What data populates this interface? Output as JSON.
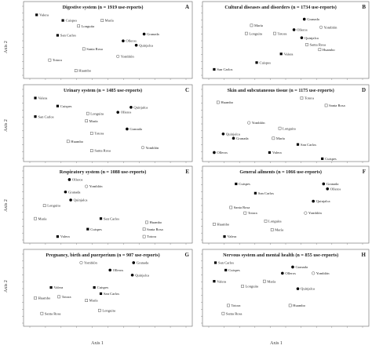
{
  "figure": {
    "x_axis_title": "Axis 1",
    "y_axis_title": "Axis 2",
    "colors": {
      "filled": "#000000",
      "open_stroke": "#555555",
      "frame": "#666666"
    }
  },
  "chart_data": [
    {
      "letter": "A",
      "title": "Digestive system (n = 1919 use-reports)",
      "type": "scatter",
      "xlim": [
        0,
        1
      ],
      "ylim": [
        0,
        1
      ],
      "points": [
        {
          "label": "Valera",
          "x": 0.04,
          "y": 0.95,
          "marker": "square"
        },
        {
          "label": "Cuispes",
          "x": 0.24,
          "y": 0.86,
          "marker": "square"
        },
        {
          "label": "María",
          "x": 0.54,
          "y": 0.86,
          "marker": "open-square"
        },
        {
          "label": "Longuita",
          "x": 0.36,
          "y": 0.77,
          "marker": "open-square"
        },
        {
          "label": "San Carlos",
          "x": 0.2,
          "y": 0.62,
          "marker": "square"
        },
        {
          "label": "Granada",
          "x": 0.86,
          "y": 0.64,
          "marker": "circle"
        },
        {
          "label": "Olleros",
          "x": 0.7,
          "y": 0.53,
          "marker": "circle"
        },
        {
          "label": "Quinjalca",
          "x": 0.8,
          "y": 0.46,
          "marker": "circle"
        },
        {
          "label": "Santa Rosa",
          "x": 0.4,
          "y": 0.4,
          "marker": "open-square"
        },
        {
          "label": "Yomblón",
          "x": 0.66,
          "y": 0.28,
          "marker": "open-circle"
        },
        {
          "label": "Totora",
          "x": 0.14,
          "y": 0.22,
          "marker": "open-square"
        },
        {
          "label": "Huambo",
          "x": 0.34,
          "y": 0.05,
          "marker": "open-square"
        }
      ]
    },
    {
      "letter": "B",
      "title": "Cultural diseases and disorders (n = 1734 use-reports)",
      "type": "scatter",
      "xlim": [
        0,
        1
      ],
      "ylim": [
        0,
        1
      ],
      "points": [
        {
          "label": "Granada",
          "x": 0.73,
          "y": 0.88,
          "marker": "circle"
        },
        {
          "label": "María",
          "x": 0.32,
          "y": 0.78,
          "marker": "open-square"
        },
        {
          "label": "Yomblón",
          "x": 0.86,
          "y": 0.75,
          "marker": "open-circle"
        },
        {
          "label": "Olleros",
          "x": 0.65,
          "y": 0.71,
          "marker": "circle"
        },
        {
          "label": "Longuita",
          "x": 0.28,
          "y": 0.65,
          "marker": "open-square"
        },
        {
          "label": "Totora",
          "x": 0.5,
          "y": 0.65,
          "marker": "open-square"
        },
        {
          "label": "Quinjalca",
          "x": 0.71,
          "y": 0.58,
          "marker": "circle"
        },
        {
          "label": "Santa Rosa",
          "x": 0.75,
          "y": 0.47,
          "marker": "open-square"
        },
        {
          "label": "Huambo",
          "x": 0.85,
          "y": 0.39,
          "marker": "open-square"
        },
        {
          "label": "Valera",
          "x": 0.55,
          "y": 0.32,
          "marker": "square"
        },
        {
          "label": "Cuispes",
          "x": 0.36,
          "y": 0.18,
          "marker": "square"
        },
        {
          "label": "San Carlos",
          "x": 0.03,
          "y": 0.07,
          "marker": "square"
        }
      ]
    },
    {
      "letter": "C",
      "title": "Urinary system (n = 1485 use-reports)",
      "type": "scatter",
      "xlim": [
        0,
        1
      ],
      "ylim": [
        0,
        1
      ],
      "points": [
        {
          "label": "Valera",
          "x": 0.03,
          "y": 0.95,
          "marker": "square"
        },
        {
          "label": "Cuispes",
          "x": 0.2,
          "y": 0.82,
          "marker": "square"
        },
        {
          "label": "Quinjalca",
          "x": 0.76,
          "y": 0.8,
          "marker": "circle"
        },
        {
          "label": "San Carlos",
          "x": 0.03,
          "y": 0.65,
          "marker": "square"
        },
        {
          "label": "Longuita",
          "x": 0.43,
          "y": 0.7,
          "marker": "open-square"
        },
        {
          "label": "Olleros",
          "x": 0.66,
          "y": 0.72,
          "marker": "circle"
        },
        {
          "label": "María",
          "x": 0.42,
          "y": 0.58,
          "marker": "open-square"
        },
        {
          "label": "Granada",
          "x": 0.73,
          "y": 0.45,
          "marker": "circle"
        },
        {
          "label": "Totora",
          "x": 0.46,
          "y": 0.38,
          "marker": "open-square"
        },
        {
          "label": "Huambo",
          "x": 0.28,
          "y": 0.25,
          "marker": "open-square"
        },
        {
          "label": "Santa Rosa",
          "x": 0.46,
          "y": 0.1,
          "marker": "open-square"
        },
        {
          "label": "Yomblón",
          "x": 0.85,
          "y": 0.15,
          "marker": "open-circle"
        }
      ]
    },
    {
      "letter": "D",
      "title": "Skin and subcutaneous tissue (n = 1175 use-reports)",
      "type": "scatter",
      "xlim": [
        0,
        1
      ],
      "ylim": [
        0,
        1
      ],
      "points": [
        {
          "label": "Huambo",
          "x": 0.06,
          "y": 0.88,
          "marker": "open-square"
        },
        {
          "label": "Totora",
          "x": 0.71,
          "y": 0.95,
          "marker": "open-square"
        },
        {
          "label": "Santa Rosa",
          "x": 0.9,
          "y": 0.83,
          "marker": "open-square"
        },
        {
          "label": "Yomblón",
          "x": 0.3,
          "y": 0.55,
          "marker": "open-circle"
        },
        {
          "label": "Longuita",
          "x": 0.54,
          "y": 0.46,
          "marker": "open-square"
        },
        {
          "label": "Quinjalca",
          "x": 0.1,
          "y": 0.37,
          "marker": "circle"
        },
        {
          "label": "Granada",
          "x": 0.18,
          "y": 0.3,
          "marker": "circle"
        },
        {
          "label": "María",
          "x": 0.49,
          "y": 0.3,
          "marker": "open-square"
        },
        {
          "label": "San Carlos",
          "x": 0.68,
          "y": 0.2,
          "marker": "square"
        },
        {
          "label": "Olleros",
          "x": 0.03,
          "y": 0.07,
          "marker": "circle"
        },
        {
          "label": "Valera",
          "x": 0.46,
          "y": 0.07,
          "marker": "square"
        },
        {
          "label": "Cuispes",
          "x": 0.87,
          "y": -0.03,
          "marker": "square"
        }
      ]
    },
    {
      "letter": "E",
      "title": "Respiratory system (n = 1088 use-reports)",
      "type": "scatter",
      "xlim": [
        0,
        1
      ],
      "ylim": [
        0,
        1
      ],
      "points": [
        {
          "label": "Olleros",
          "x": 0.29,
          "y": 0.95,
          "marker": "circle"
        },
        {
          "label": "Yomblón",
          "x": 0.42,
          "y": 0.84,
          "marker": "open-circle"
        },
        {
          "label": "Granada",
          "x": 0.26,
          "y": 0.75,
          "marker": "circle"
        },
        {
          "label": "Quinjalca",
          "x": 0.3,
          "y": 0.62,
          "marker": "circle"
        },
        {
          "label": "Longuita",
          "x": 0.1,
          "y": 0.53,
          "marker": "open-square"
        },
        {
          "label": "María",
          "x": 0.03,
          "y": 0.32,
          "marker": "open-square"
        },
        {
          "label": "San Carlos",
          "x": 0.53,
          "y": 0.32,
          "marker": "square"
        },
        {
          "label": "Huambo",
          "x": 0.88,
          "y": 0.26,
          "marker": "open-square"
        },
        {
          "label": "Cuispes",
          "x": 0.43,
          "y": 0.15,
          "marker": "square"
        },
        {
          "label": "Santa Rosa",
          "x": 0.86,
          "y": 0.15,
          "marker": "open-square"
        },
        {
          "label": "Valera",
          "x": 0.2,
          "y": 0.03,
          "marker": "square"
        },
        {
          "label": "Totora",
          "x": 0.86,
          "y": 0.03,
          "marker": "open-square"
        }
      ]
    },
    {
      "letter": "F",
      "title": "General ailments (n = 1066 use-reports)",
      "type": "scatter",
      "xlim": [
        0,
        1
      ],
      "ylim": [
        0,
        1
      ],
      "points": [
        {
          "label": "Cuispes",
          "x": 0.2,
          "y": 0.88,
          "marker": "square"
        },
        {
          "label": "Granada",
          "x": 0.88,
          "y": 0.88,
          "marker": "circle"
        },
        {
          "label": "Olleros",
          "x": 0.91,
          "y": 0.8,
          "marker": "circle"
        },
        {
          "label": "San Carlos",
          "x": 0.35,
          "y": 0.73,
          "marker": "square"
        },
        {
          "label": "Quinjalca",
          "x": 0.8,
          "y": 0.6,
          "marker": "circle"
        },
        {
          "label": "Santa Rosa",
          "x": 0.16,
          "y": 0.5,
          "marker": "open-square"
        },
        {
          "label": "Totora",
          "x": 0.27,
          "y": 0.41,
          "marker": "open-square"
        },
        {
          "label": "Yomblón",
          "x": 0.74,
          "y": 0.41,
          "marker": "open-circle"
        },
        {
          "label": "Longuita",
          "x": 0.43,
          "y": 0.28,
          "marker": "open-square"
        },
        {
          "label": "Huambo",
          "x": 0.03,
          "y": 0.23,
          "marker": "open-square"
        },
        {
          "label": "María",
          "x": 0.48,
          "y": 0.14,
          "marker": "open-square"
        },
        {
          "label": "Valera",
          "x": 0.11,
          "y": 0.03,
          "marker": "square"
        }
      ]
    },
    {
      "letter": "G",
      "title": "Pregnancy, birth and puerperium (n = 907 use-reports)",
      "type": "scatter",
      "xlim": [
        0,
        1
      ],
      "ylim": [
        0,
        1
      ],
      "points": [
        {
          "label": "Yomblón",
          "x": 0.38,
          "y": 0.95,
          "marker": "open-circle"
        },
        {
          "label": "Granada",
          "x": 0.78,
          "y": 0.95,
          "marker": "circle"
        },
        {
          "label": "Olleros",
          "x": 0.6,
          "y": 0.83,
          "marker": "circle"
        },
        {
          "label": "Quinjalca",
          "x": 0.77,
          "y": 0.75,
          "marker": "circle"
        },
        {
          "label": "Valera",
          "x": 0.15,
          "y": 0.55,
          "marker": "square"
        },
        {
          "label": "Cuispes",
          "x": 0.48,
          "y": 0.55,
          "marker": "square"
        },
        {
          "label": "San Carlos",
          "x": 0.53,
          "y": 0.45,
          "marker": "square"
        },
        {
          "label": "Huambo",
          "x": 0.03,
          "y": 0.38,
          "marker": "open-square"
        },
        {
          "label": "Totora",
          "x": 0.21,
          "y": 0.4,
          "marker": "open-square"
        },
        {
          "label": "María",
          "x": 0.42,
          "y": 0.34,
          "marker": "open-square"
        },
        {
          "label": "Santa Rosa",
          "x": 0.08,
          "y": 0.13,
          "marker": "open-square"
        },
        {
          "label": "Longuita",
          "x": 0.52,
          "y": 0.18,
          "marker": "open-square"
        }
      ]
    },
    {
      "letter": "H",
      "title": "Nervous system and mental health (n = 855 use-reports)",
      "type": "scatter",
      "xlim": [
        0,
        1
      ],
      "ylim": [
        0,
        1
      ],
      "points": [
        {
          "label": "San Carlos",
          "x": 0.04,
          "y": 0.95,
          "marker": "square"
        },
        {
          "label": "Cuispes",
          "x": 0.12,
          "y": 0.83,
          "marker": "square"
        },
        {
          "label": "Granada",
          "x": 0.64,
          "y": 0.88,
          "marker": "circle"
        },
        {
          "label": "Olleros",
          "x": 0.56,
          "y": 0.78,
          "marker": "circle"
        },
        {
          "label": "Yomblón",
          "x": 0.8,
          "y": 0.78,
          "marker": "open-circle"
        },
        {
          "label": "Valera",
          "x": 0.03,
          "y": 0.65,
          "marker": "square"
        },
        {
          "label": "María",
          "x": 0.42,
          "y": 0.65,
          "marker": "open-square"
        },
        {
          "label": "Longuita",
          "x": 0.25,
          "y": 0.57,
          "marker": "open-square"
        },
        {
          "label": "Quinjalca",
          "x": 0.68,
          "y": 0.53,
          "marker": "circle"
        },
        {
          "label": "Totora",
          "x": 0.14,
          "y": 0.26,
          "marker": "open-square"
        },
        {
          "label": "Huambo",
          "x": 0.62,
          "y": 0.26,
          "marker": "open-square"
        },
        {
          "label": "Santa Rosa",
          "x": 0.1,
          "y": 0.13,
          "marker": "open-square"
        }
      ]
    }
  ]
}
